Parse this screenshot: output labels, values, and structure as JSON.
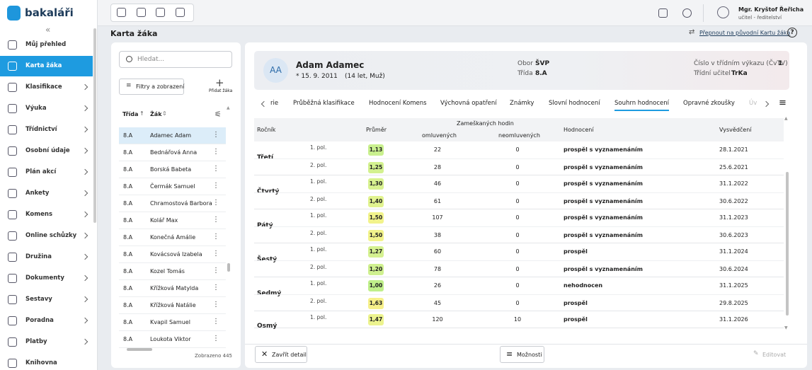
{
  "sidebar": {
    "brand": "bakaláři",
    "items": [
      "Můj přehled",
      "Karta žáka",
      "Klasifikace",
      "Výuka",
      "Třídnictví",
      "Osobní údaje",
      "Plán akcí",
      "Ankety",
      "Komens",
      "Online schůzky",
      "Družina",
      "Dokumenty",
      "Sestavy",
      "Poradna",
      "Platby",
      "Knihovna"
    ]
  },
  "topbar": {
    "user_name": "Mgr. Kryštof Řeřicha",
    "user_role": "učitel - ředitelství"
  },
  "header": {
    "title": "Karta žáka",
    "switch_link": "Přepnout na původní Kartu žáka"
  },
  "student_list": {
    "search_placeholder": "Hledat...",
    "filter_button": "Filtry a zobrazení",
    "add_label": "Přidat žáka",
    "columns": [
      "Třída",
      "Žák"
    ],
    "rows": [
      [
        "8.A",
        "Adamec Adam"
      ],
      [
        "8.A",
        "Bednářová Anna"
      ],
      [
        "8.A",
        "Borská Babeta"
      ],
      [
        "8.A",
        "Čermák Samuel"
      ],
      [
        "8.A",
        "Chramostová Barbora"
      ],
      [
        "8.A",
        "Kolář Max"
      ],
      [
        "8.A",
        "Konečná Amálie"
      ],
      [
        "8.A",
        "Kovácsová Izabela"
      ],
      [
        "8.A",
        "Kozel Tomás"
      ],
      [
        "8.A",
        "Křížková Matylda"
      ],
      [
        "8.A",
        "Křížková Natálie"
      ],
      [
        "8.A",
        "Kvapil Samuel"
      ],
      [
        "8.A",
        "Loukota Viktor"
      ]
    ],
    "footer": "Zobrazeno 445"
  },
  "student": {
    "initials": "AA",
    "name": "Adam Adamec",
    "birth": "* 15. 9. 2011",
    "age": "(14 let, Muž)",
    "fields": [
      {
        "label": "Obor",
        "value": "ŠVP"
      },
      {
        "label": "Třída",
        "value": "8.A"
      },
      {
        "label": "Číslo v třídním výkazu (ČvTV)",
        "value": "1"
      },
      {
        "label": "Třídní učitel",
        "value": "TrKa"
      }
    ]
  },
  "tabs": [
    "rie",
    "Průběžná klasifikace",
    "Hodnocení Komens",
    "Výchovná opatření",
    "Známky",
    "Slovní hodnocení",
    "Souhrn hodnocení",
    "Opravné zkoušky",
    "Úv"
  ],
  "table": {
    "headers": {
      "year": "Ročník",
      "average": "Průměr",
      "missed": "Zameškaných hodin",
      "excused": "omluvených",
      "unexcused": "neomluvených",
      "evaluation": "Hodnocení",
      "report": "Vysvědčení"
    },
    "groups": [
      {
        "year": "Třetí",
        "rows": [
          {
            "term": "1. pol.",
            "average": "1,13",
            "color": "#c9f08e",
            "excused": 22,
            "unexcused": 0,
            "evaluation": "prospěl s vyznamenáním",
            "date": "28.1.2021"
          },
          {
            "term": "2. pol.",
            "average": "1,25",
            "color": "#d3f18f",
            "excused": 28,
            "unexcused": 0,
            "evaluation": "prospěl s vyznamenáním",
            "date": "25.6.2021"
          }
        ]
      },
      {
        "year": "Čtvrtý",
        "rows": [
          {
            "term": "1. pol.",
            "average": "1,30",
            "color": "#d8f290",
            "excused": 46,
            "unexcused": 0,
            "evaluation": "prospěl s vyznamenáním",
            "date": "31.1.2022"
          },
          {
            "term": "2. pol.",
            "average": "1,40",
            "color": "#e1f38f",
            "excused": 61,
            "unexcused": 0,
            "evaluation": "prospěl s vyznamenáním",
            "date": "30.6.2022"
          }
        ]
      },
      {
        "year": "Pátý",
        "rows": [
          {
            "term": "1. pol.",
            "average": "1,50",
            "color": "#f2f38b",
            "excused": 107,
            "unexcused": 0,
            "evaluation": "prospěl s vyznamenáním",
            "date": "31.1.2023"
          },
          {
            "term": "2. pol.",
            "average": "1,50",
            "color": "#f2f38b",
            "excused": 38,
            "unexcused": 0,
            "evaluation": "prospěl s vyznamenáním",
            "date": "30.6.2023"
          }
        ]
      },
      {
        "year": "Šestý",
        "rows": [
          {
            "term": "1. pol.",
            "average": "1,27",
            "color": "#d5f190",
            "excused": 60,
            "unexcused": 0,
            "evaluation": "prospěl",
            "date": "31.1.2024"
          },
          {
            "term": "2. pol.",
            "average": "1,20",
            "color": "#cff08f",
            "excused": 78,
            "unexcused": 0,
            "evaluation": "prospěl s vyznamenáním",
            "date": "30.6.2024"
          }
        ]
      },
      {
        "year": "Sedmý",
        "rows": [
          {
            "term": "1. pol.",
            "average": "1,00",
            "color": "#bfef8a",
            "excused": 26,
            "unexcused": 0,
            "evaluation": "nehodnocen",
            "date": "31.1.2025"
          },
          {
            "term": "2. pol.",
            "average": "1,63",
            "color": "#f6f08a",
            "excused": 45,
            "unexcused": 0,
            "evaluation": "prospěl",
            "date": "29.8.2025"
          }
        ]
      },
      {
        "year": "Osmý",
        "rows": [
          {
            "term": "1. pol.",
            "average": "1,47",
            "color": "#ecf38e",
            "excused": 120,
            "unexcused": 10,
            "evaluation": "prospěl",
            "date": "31.1.2026"
          }
        ]
      }
    ]
  },
  "footer_buttons": {
    "close": "Zavřít detail",
    "options": "Možnosti",
    "edit": "Editovat"
  }
}
